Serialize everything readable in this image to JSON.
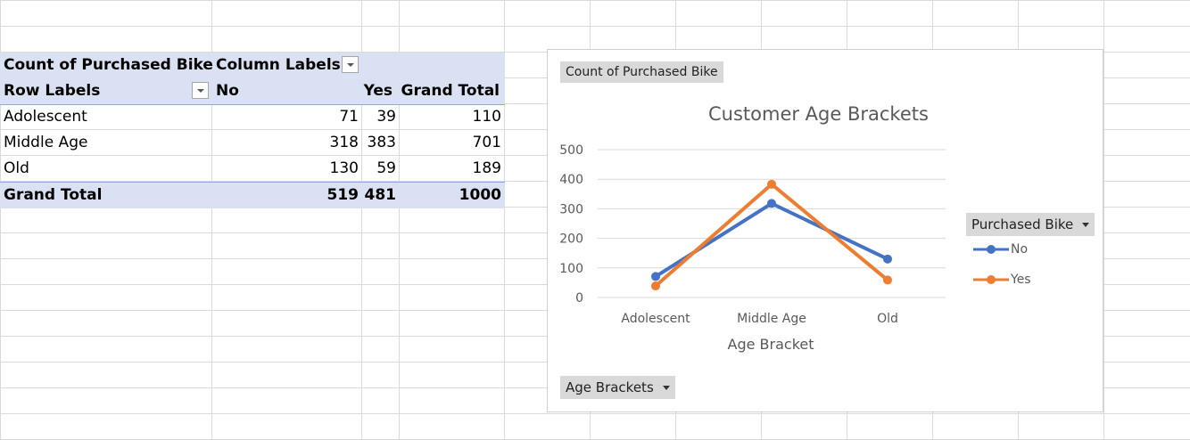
{
  "pivot": {
    "header1": {
      "value_label": "Count of Purchased Bike",
      "column_labels": "Column Labels"
    },
    "header2": {
      "row_labels": "Row Labels",
      "no": "No",
      "yes": "Yes",
      "grand_total": "Grand Total"
    },
    "rows": [
      {
        "label": "Adolescent",
        "no": "71",
        "yes": "39",
        "total": "110"
      },
      {
        "label": "Middle Age",
        "no": "318",
        "yes": "383",
        "total": "701"
      },
      {
        "label": "Old",
        "no": "130",
        "yes": "59",
        "total": "189"
      }
    ],
    "grand_total": {
      "label": "Grand Total",
      "no": "519",
      "yes": "481",
      "total": "1000"
    }
  },
  "chart": {
    "value_field_button": "Count of Purchased Bike",
    "legend_field_button": "Purchased Bike",
    "axis_field_button": "Age Brackets"
  },
  "chart_data": {
    "type": "line",
    "title": "Customer Age Brackets",
    "xlabel": "Age Bracket",
    "ylabel": "",
    "categories": [
      "Adolescent",
      "Middle Age",
      "Old"
    ],
    "series": [
      {
        "name": "No",
        "values": [
          71,
          318,
          130
        ],
        "color": "#4472c4"
      },
      {
        "name": "Yes",
        "values": [
          39,
          383,
          59
        ],
        "color": "#ed7d31"
      }
    ],
    "ylim": [
      0,
      500
    ],
    "yticks": [
      "0",
      "100",
      "200",
      "300",
      "400",
      "500"
    ],
    "grid": true,
    "legend_position": "right"
  }
}
